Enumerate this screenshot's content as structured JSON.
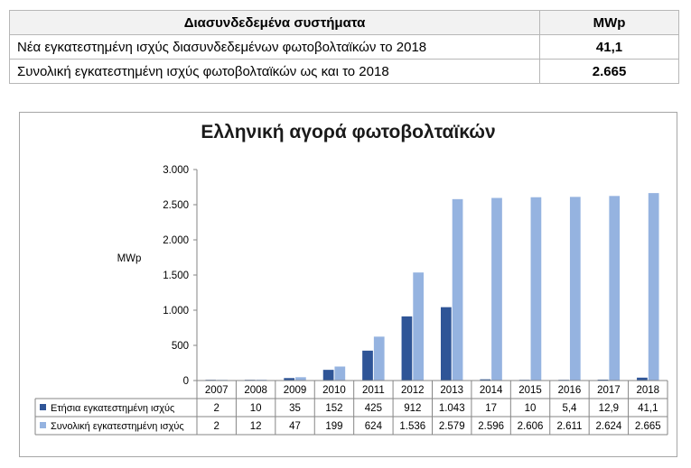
{
  "table": {
    "header": {
      "label": "Διασυνδεδεμένα συστήματα",
      "unit": "MWp"
    },
    "rows": [
      {
        "label": "Νέα εγκατεστημένη ισχύς διασυνδεδεμένων φωτοβολταϊκών το 2018",
        "value": "41,1"
      },
      {
        "label": "Συνολική εγκατεστημένη ισχύς φωτοβολταϊκών ως και το 2018",
        "value": "2.665"
      }
    ]
  },
  "chart_data": {
    "type": "bar",
    "title": "Ελληνική αγορά φωτοβολταϊκών",
    "ylabel": "MWp",
    "xlabel": "",
    "ylim": [
      0,
      3000
    ],
    "yticks": [
      0,
      500,
      1000,
      1500,
      2000,
      2500,
      3000
    ],
    "ytick_labels": [
      "0",
      "500",
      "1.000",
      "1.500",
      "2.000",
      "2.500",
      "3.000"
    ],
    "grid": false,
    "legend": "data-table",
    "categories": [
      "2007",
      "2008",
      "2009",
      "2010",
      "2011",
      "2012",
      "2013",
      "2014",
      "2015",
      "2016",
      "2017",
      "2018"
    ],
    "series": [
      {
        "name": "Ετήσια εγκατεστημένη ισχύς",
        "color": "#2f5597",
        "values": [
          2,
          10,
          35,
          152,
          425,
          912,
          1043,
          17,
          10,
          5.4,
          12.9,
          41.1
        ],
        "labels": [
          "2",
          "10",
          "35",
          "152",
          "425",
          "912",
          "1.043",
          "17",
          "10",
          "5,4",
          "12,9",
          "41,1"
        ]
      },
      {
        "name": "Συνολική εγκατεστημένη ισχύς",
        "color": "#95b3e0",
        "values": [
          2,
          12,
          47,
          199,
          624,
          1536,
          2579,
          2596,
          2606,
          2611,
          2624,
          2665
        ],
        "labels": [
          "2",
          "12",
          "47",
          "199",
          "624",
          "1.536",
          "2.579",
          "2.596",
          "2.606",
          "2.611",
          "2.624",
          "2.665"
        ]
      }
    ]
  }
}
